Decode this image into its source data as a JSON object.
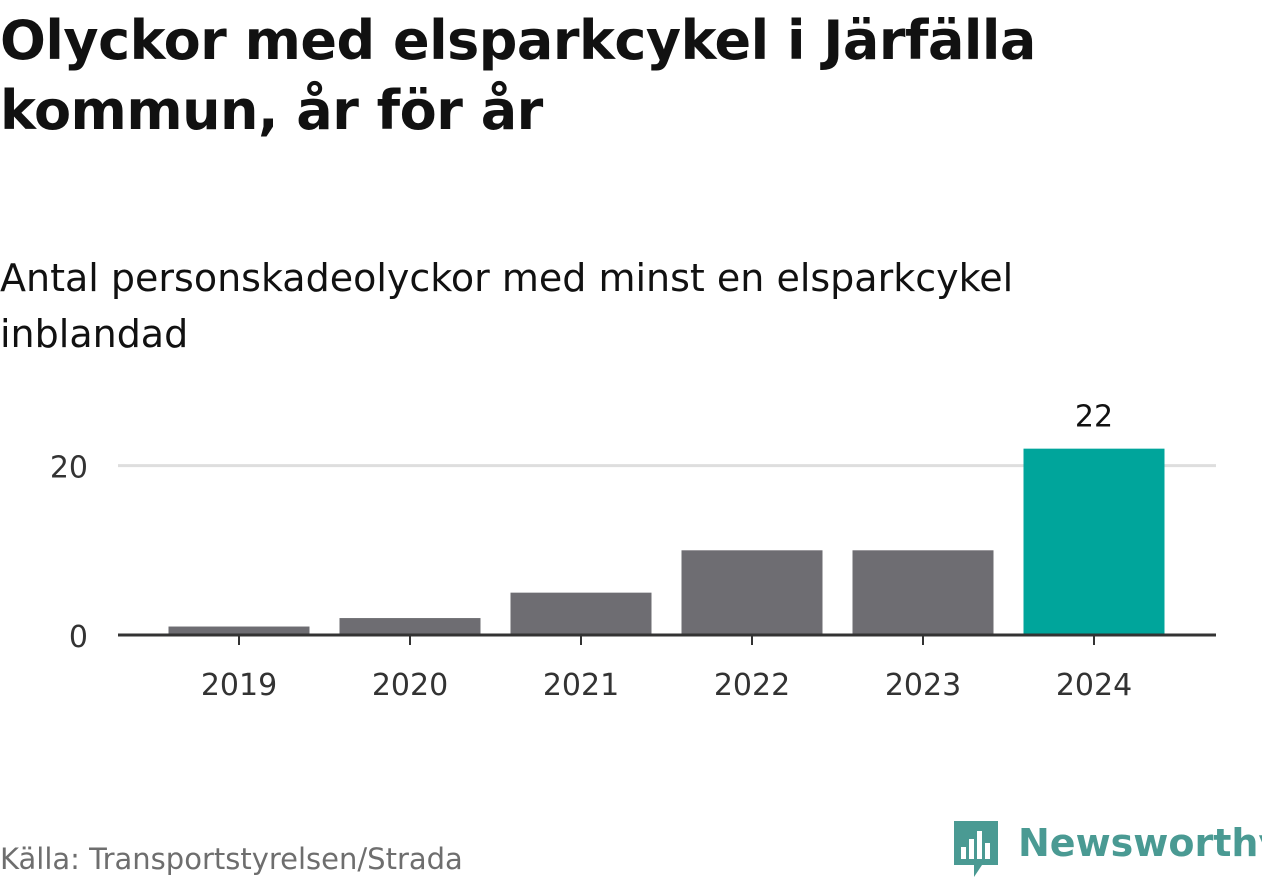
{
  "title": "Olyckor med elsparkcykel i Järfälla kommun, år för år",
  "subtitle": "Antal personskadeolyckor med minst en elsparkcykel inblandad",
  "source": "Källa: Transportstyrelsen/Strada",
  "brand": {
    "name": "Newsworthy",
    "color": "#4a9a93",
    "icon": "bar-chart-speech-bubble-icon"
  },
  "chart_data": {
    "type": "bar",
    "categories": [
      "2019",
      "2020",
      "2021",
      "2022",
      "2023",
      "2024"
    ],
    "values": [
      1,
      2,
      5,
      10,
      10,
      22
    ],
    "value_labels": [
      "",
      "",
      "",
      "",
      "",
      "22"
    ],
    "highlight_index": 5,
    "colors": {
      "default": "#6e6d72",
      "highlight": "#00a59b",
      "grid": "#dedede",
      "axis": "#333333",
      "tick_text": "#333333"
    },
    "yticks": [
      0,
      20
    ],
    "ylim": [
      0,
      22
    ],
    "grid": true,
    "xlabel": "",
    "ylabel": ""
  }
}
